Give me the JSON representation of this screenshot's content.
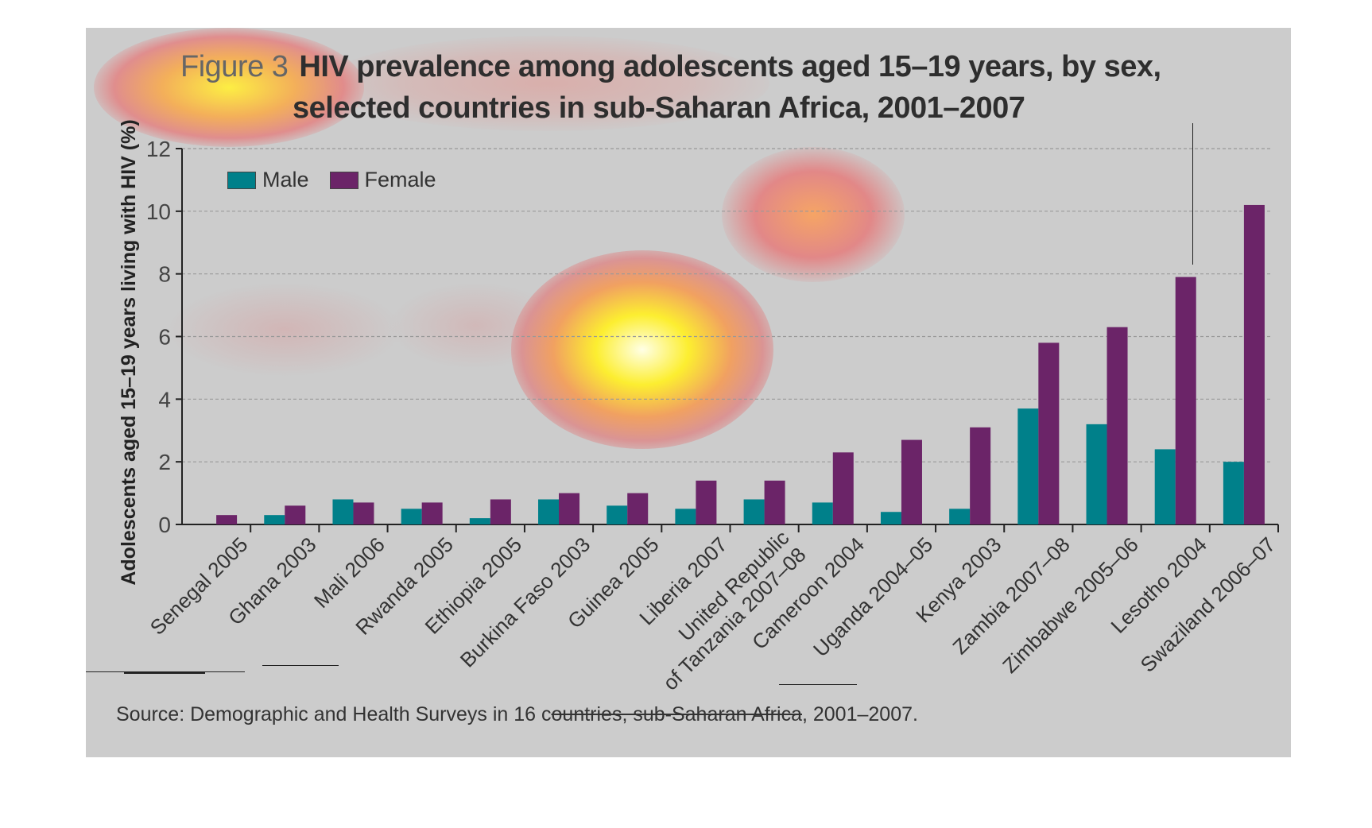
{
  "figure": {
    "label": "Figure 3",
    "title_line1": "HIV prevalence among adolescents aged 15–19 years, by sex,",
    "title_line2": "selected countries in sub-Saharan Africa, 2001–2007"
  },
  "legend": {
    "male_label": "Male",
    "female_label": "Female"
  },
  "source": {
    "prefix": "Source: Demographic and Health Surveys in 16 c",
    "struck": "ountries, sub-Saharan Africa",
    "suffix": ", 2001–2007."
  },
  "colors": {
    "male": "#00808a",
    "female": "#6b2468",
    "background": "#cccccc",
    "grid": "#999999"
  },
  "chart_data": {
    "type": "bar",
    "title": "HIV prevalence among adolescents aged 15–19 years, by sex, selected countries in sub-Saharan Africa, 2001–2007",
    "ylabel": "Adolescents aged 15–19 years living with HIV (%)",
    "xlabel": "",
    "ylim": [
      0,
      12
    ],
    "yticks": [
      0,
      2,
      4,
      6,
      8,
      10,
      12
    ],
    "grid": true,
    "legend_position": "top-left",
    "categories": [
      "Senegal 2005",
      "Ghana 2003",
      "Mali 2006",
      "Rwanda 2005",
      "Ethiopia 2005",
      "Burkina Faso 2003",
      "Guinea 2005",
      "Liberia 2007",
      "United Republic\nof Tanzania 2007–08",
      "Cameroon 2004",
      "Uganda 2004–05",
      "Kenya 2003",
      "Zambia 2007–08",
      "Zimbabwe 2005–06",
      "Lesotho 2004",
      "Swaziland 2006–07"
    ],
    "series": [
      {
        "name": "Male",
        "color": "#00808a",
        "values": [
          0.0,
          0.3,
          0.8,
          0.5,
          0.2,
          0.8,
          0.6,
          0.5,
          0.8,
          0.7,
          0.4,
          0.5,
          3.7,
          3.2,
          2.4,
          2.0
        ]
      },
      {
        "name": "Female",
        "color": "#6b2468",
        "values": [
          0.3,
          0.6,
          0.7,
          0.7,
          0.8,
          1.0,
          1.0,
          1.4,
          1.4,
          2.3,
          2.7,
          3.1,
          5.8,
          6.3,
          7.9,
          10.2
        ]
      }
    ]
  }
}
